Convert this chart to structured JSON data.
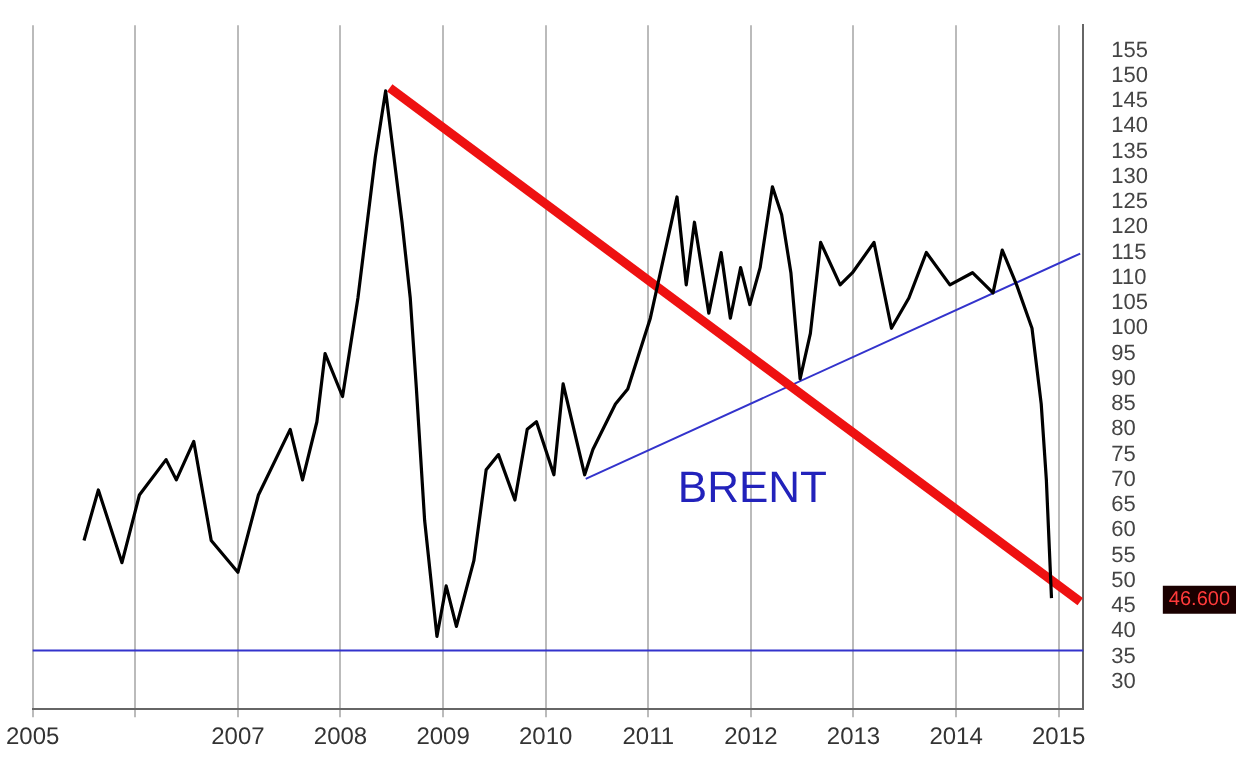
{
  "chart_data": {
    "type": "line",
    "title": null,
    "annotations": [
      "BRENT",
      "46.600"
    ],
    "xlim": [
      2005,
      2015.24
    ],
    "xticks": [
      2005,
      {
        "value": 2006,
        "label": null
      },
      2007,
      2008,
      2009,
      2010,
      2011,
      2012,
      2013,
      2014,
      2015
    ],
    "ylim": [
      24.6,
      160
    ],
    "yticks": [
      30,
      35,
      40,
      45,
      50,
      55,
      60,
      65,
      70,
      75,
      80,
      85,
      90,
      95,
      100,
      105,
      110,
      115,
      120,
      125,
      130,
      135,
      140,
      145,
      150,
      155
    ],
    "grid": "x",
    "legend": false,
    "marker": "none",
    "ref_lines": [
      {
        "axis": "y",
        "value": 36.2,
        "color": "#3333cc"
      }
    ],
    "series": [
      {
        "color": "#000000",
        "x": [
          2005.5,
          2005.64,
          2005.87,
          2006.04,
          2006.3,
          2006.4,
          2006.57,
          2006.74,
          2007.0,
          2007.2,
          2007.51,
          2007.63,
          2007.77,
          2007.85,
          2008.02,
          2008.17,
          2008.34,
          2008.44,
          2008.6,
          2008.68,
          2008.74,
          2008.82,
          2008.94,
          2009.03,
          2009.13,
          2009.3,
          2009.42,
          2009.54,
          2009.7,
          2009.82,
          2009.91,
          2010.08,
          2010.17,
          2010.38,
          2010.46,
          2010.68,
          2010.8,
          2011.02,
          2011.2,
          2011.28,
          2011.37,
          2011.45,
          2011.59,
          2011.71,
          2011.8,
          2011.9,
          2011.99,
          2012.09,
          2012.21,
          2012.3,
          2012.39,
          2012.48,
          2012.58,
          2012.68,
          2012.87,
          2012.99,
          2013.2,
          2013.37,
          2013.54,
          2013.71,
          2013.94,
          2014.16,
          2014.36,
          2014.45,
          2014.59,
          2014.74,
          2014.83,
          2014.88,
          2014.93
        ],
        "values": [
          58,
          68,
          53.6,
          67,
          74,
          70,
          77.6,
          58,
          51.7,
          67,
          80,
          70,
          81.5,
          95,
          86.5,
          106,
          134,
          147,
          121,
          106,
          88,
          62,
          39,
          49,
          41,
          54,
          72,
          75,
          66,
          80,
          81.5,
          71,
          89,
          71,
          76,
          85,
          88,
          102,
          118.6,
          126,
          108.6,
          121,
          103,
          115,
          102,
          112,
          104.7,
          112,
          128,
          122.5,
          111,
          90,
          99,
          117,
          108.6,
          111,
          117,
          100,
          106,
          115,
          108.6,
          111,
          107,
          115.5,
          108.6,
          100,
          85,
          70,
          46.6
        ]
      },
      {
        "color": "#ee1111",
        "x": [
          2008.48,
          2015.21
        ],
        "values": [
          147.6,
          45.9
        ]
      },
      {
        "color": "#3333cc",
        "x": [
          2010.39,
          2015.21
        ],
        "values": [
          70.2,
          114.8
        ]
      }
    ]
  }
}
